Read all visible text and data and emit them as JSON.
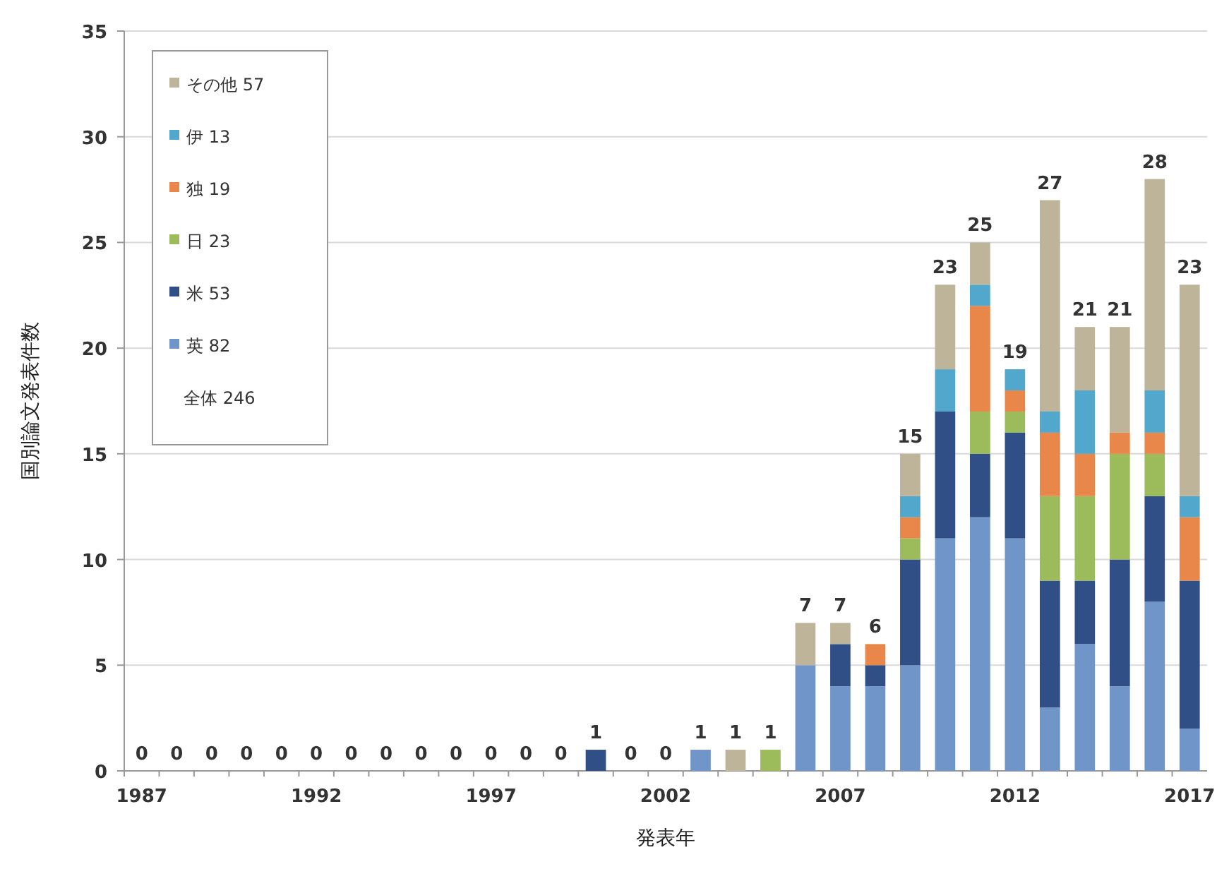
{
  "chart_data": {
    "type": "bar",
    "stacked": true,
    "xlabel": "発表年",
    "ylabel": "国別論文発表件数",
    "categories": [
      "1987",
      null,
      null,
      null,
      null,
      "1992",
      null,
      null,
      null,
      null,
      "1997",
      null,
      null,
      null,
      null,
      "2002",
      null,
      null,
      null,
      null,
      "2007",
      null,
      null,
      null,
      null,
      "2012",
      null,
      null,
      null,
      null,
      "2017"
    ],
    "series": [
      {
        "name": "英 82",
        "color": "#6f95c9",
        "values": [
          0,
          0,
          0,
          0,
          0,
          0,
          0,
          0,
          0,
          0,
          0,
          0,
          0,
          0,
          0,
          0,
          1,
          0,
          0,
          5,
          4,
          4,
          5,
          11,
          12,
          11,
          3,
          6,
          4,
          8,
          2
        ]
      },
      {
        "name": "米 53",
        "color": "#2f4f86",
        "values": [
          0,
          0,
          0,
          0,
          0,
          0,
          0,
          0,
          0,
          0,
          0,
          0,
          0,
          1,
          0,
          0,
          0,
          0,
          0,
          0,
          2,
          1,
          5,
          6,
          3,
          5,
          6,
          3,
          6,
          5,
          7
        ]
      },
      {
        "name": "日 23",
        "color": "#9cbb5b",
        "values": [
          0,
          0,
          0,
          0,
          0,
          0,
          0,
          0,
          0,
          0,
          0,
          0,
          0,
          0,
          0,
          0,
          0,
          0,
          1,
          0,
          0,
          0,
          1,
          0,
          2,
          1,
          4,
          4,
          5,
          2,
          0
        ]
      },
      {
        "name": "独 19",
        "color": "#e9874b",
        "values": [
          0,
          0,
          0,
          0,
          0,
          0,
          0,
          0,
          0,
          0,
          0,
          0,
          0,
          0,
          0,
          0,
          0,
          0,
          0,
          0,
          0,
          1,
          1,
          0,
          5,
          1,
          3,
          2,
          1,
          1,
          3
        ]
      },
      {
        "name": "伊 13",
        "color": "#52a8cc",
        "values": [
          0,
          0,
          0,
          0,
          0,
          0,
          0,
          0,
          0,
          0,
          0,
          0,
          0,
          0,
          0,
          0,
          0,
          0,
          0,
          0,
          0,
          0,
          1,
          2,
          1,
          1,
          1,
          3,
          0,
          2,
          1
        ]
      },
      {
        "name": "その他 57",
        "color": "#bdb49a",
        "values": [
          0,
          0,
          0,
          0,
          0,
          0,
          0,
          0,
          0,
          0,
          0,
          0,
          0,
          0,
          0,
          0,
          0,
          1,
          0,
          2,
          1,
          0,
          2,
          4,
          2,
          0,
          10,
          3,
          5,
          10,
          10
        ]
      }
    ],
    "totals": [
      "0",
      "0",
      "0",
      "0",
      "0",
      "0",
      "0",
      "0",
      "0",
      "0",
      "0",
      "0",
      "0",
      "1",
      "0",
      "0",
      "1",
      "1",
      "1",
      "7",
      "7",
      "6",
      "15",
      "23",
      "25",
      "19",
      "27",
      "21",
      "21",
      "28",
      "23"
    ],
    "ylim": [
      0,
      35
    ],
    "yticks": [
      0,
      5,
      10,
      15,
      20,
      25,
      30,
      35
    ],
    "grid": "y",
    "legend": "top left",
    "annotations": [
      "全体 246"
    ]
  }
}
